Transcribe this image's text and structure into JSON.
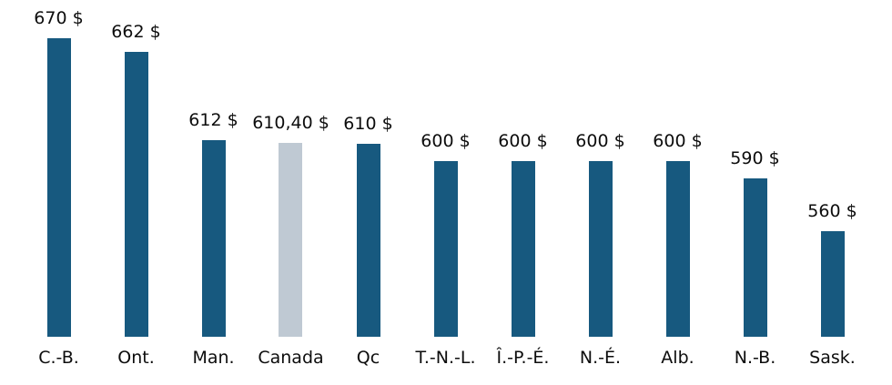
{
  "chart_data": {
    "type": "bar",
    "categories": [
      "C.-B.",
      "Ont.",
      "Man.",
      "Canada",
      "Qc",
      "T.-N.-L.",
      "Î.-P.-É.",
      "N.-É.",
      "Alb.",
      "N.-B.",
      "Sask."
    ],
    "values": [
      670,
      662,
      612,
      610.4,
      610,
      600,
      600,
      600,
      600,
      590,
      560
    ],
    "value_labels": [
      "670 $",
      "662 $",
      "612 $",
      "610,40 $",
      "610 $",
      "600 $",
      "600 $",
      "600 $",
      "600 $",
      "590 $",
      "560 $"
    ],
    "title": "",
    "xlabel": "",
    "ylabel": "",
    "ylim": [
      500,
      670
    ],
    "grid": false,
    "legend": false,
    "axis_lines": false,
    "highlight_category": "Canada",
    "colors": {
      "bar": "#17597f",
      "highlight_bar": "#bfc9d3",
      "label_text": "#0d0d0d",
      "background": "#ffffff"
    }
  }
}
